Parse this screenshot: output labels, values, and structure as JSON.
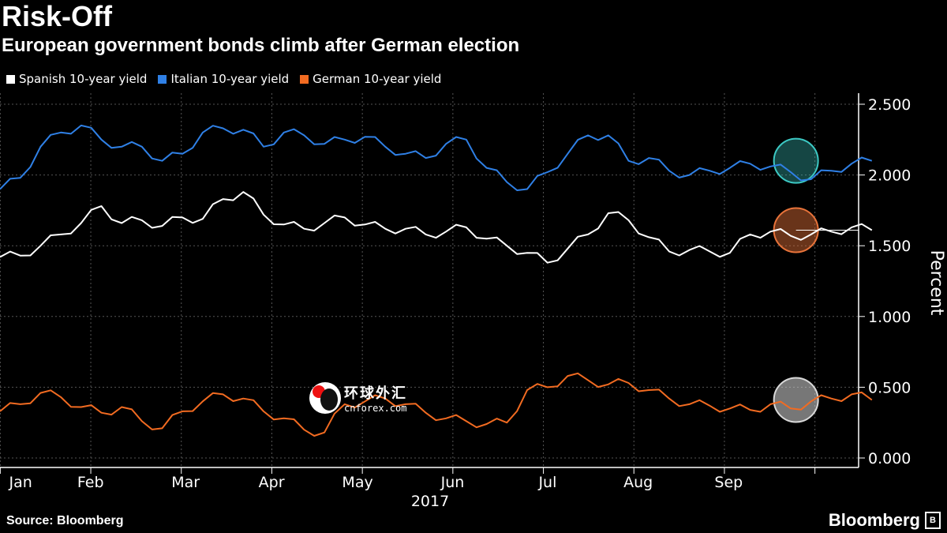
{
  "header": {
    "title": "Risk-Off",
    "subtitle": "European government bonds climb after German election"
  },
  "footer": {
    "source": "Source: Bloomberg",
    "brand": "Bloomberg",
    "brand_mark": "B"
  },
  "watermark": {
    "cn": "环球外汇",
    "en": "cnforex.com"
  },
  "colors": {
    "background": "#000000",
    "spanish": "#ffffff",
    "italian": "#2f80e6",
    "german": "#f26b21",
    "grid": "#555555",
    "highlight_italian": "#3cc9c4",
    "highlight_spanish": "#e8733a",
    "highlight_german": "#d9d9d9"
  },
  "chart_data": {
    "type": "line",
    "title": "Risk-Off",
    "subtitle": "European government bonds climb after German election",
    "xlabel": "2017",
    "ylabel": "Percent",
    "ylim": [
      0,
      2.6
    ],
    "yticks": [
      0.0,
      0.5,
      1.0,
      1.5,
      2.0,
      2.5
    ],
    "ytick_labels": [
      "0.000",
      "0.500",
      "1.000",
      "1.500",
      "2.000",
      "2.500"
    ],
    "x_range": [
      0,
      9.6
    ],
    "month_ticks": [
      0.5,
      1.5,
      2.5,
      3.5,
      4.5,
      5.5,
      6.5,
      7.5,
      8.5,
      9.5
    ],
    "month_labels": [
      "Jan",
      "Feb",
      "Mar",
      "Apr",
      "May",
      "Jun",
      "Jul",
      "Aug",
      "Sep"
    ],
    "month_label_positions": [
      0.1,
      1.0,
      2.05,
      3.0,
      3.95,
      5.0,
      6.05,
      7.05,
      8.05
    ],
    "grid": true,
    "legend_position": "top-left",
    "series": [
      {
        "name": "Spanish 10-year yield",
        "color": "#ffffff",
        "x": [
          0,
          0.2,
          0.4,
          0.6,
          0.8,
          1.0,
          1.2,
          1.4,
          1.6,
          1.8,
          2.0,
          2.2,
          2.4,
          2.6,
          2.8,
          3.0,
          3.2,
          3.4,
          3.6,
          3.8,
          4.0,
          4.2,
          4.4,
          4.6,
          4.8,
          5.0,
          5.2,
          5.4,
          5.6,
          5.8,
          6.0,
          6.2,
          6.4,
          6.6,
          6.8,
          7.0,
          7.2,
          7.4,
          7.6,
          7.8,
          8.0,
          8.2,
          8.4,
          8.6
        ],
        "y": [
          1.42,
          1.43,
          1.5,
          1.58,
          1.66,
          1.78,
          1.66,
          1.68,
          1.64,
          1.7,
          1.69,
          1.83,
          1.88,
          1.72,
          1.65,
          1.62,
          1.66,
          1.7,
          1.65,
          1.62,
          1.62,
          1.58,
          1.6,
          1.63,
          1.55,
          1.5,
          1.45,
          1.38,
          1.48,
          1.58,
          1.73,
          1.68,
          1.56,
          1.46,
          1.47,
          1.46,
          1.45,
          1.58,
          1.6,
          1.57,
          1.58,
          1.6,
          1.63,
          1.61
        ]
      },
      {
        "name": "Italian 10-year yield",
        "color": "#2f80e6",
        "x": [
          0,
          0.2,
          0.4,
          0.6,
          0.8,
          1.0,
          1.2,
          1.4,
          1.6,
          1.8,
          2.0,
          2.2,
          2.4,
          2.6,
          2.8,
          3.0,
          3.2,
          3.4,
          3.6,
          3.8,
          4.0,
          4.2,
          4.4,
          4.6,
          4.8,
          5.0,
          5.2,
          5.4,
          5.6,
          5.8,
          6.0,
          6.2,
          6.4,
          6.6,
          6.8,
          7.0,
          7.2,
          7.4,
          7.6,
          7.8,
          8.0,
          8.2,
          8.4,
          8.6
        ],
        "y": [
          1.9,
          1.98,
          2.2,
          2.3,
          2.35,
          2.25,
          2.2,
          2.2,
          2.1,
          2.15,
          2.3,
          2.33,
          2.32,
          2.2,
          2.3,
          2.28,
          2.22,
          2.25,
          2.27,
          2.2,
          2.15,
          2.12,
          2.22,
          2.25,
          2.05,
          1.95,
          1.9,
          2.02,
          2.15,
          2.28,
          2.28,
          2.1,
          2.12,
          2.03,
          2.0,
          2.03,
          2.05,
          2.08,
          2.06,
          2.02,
          1.97,
          2.03,
          2.08,
          2.1
        ]
      },
      {
        "name": "German 10-year yield",
        "color": "#f26b21",
        "x": [
          0,
          0.2,
          0.4,
          0.6,
          0.8,
          1.0,
          1.2,
          1.4,
          1.6,
          1.8,
          2.0,
          2.2,
          2.4,
          2.6,
          2.8,
          3.0,
          3.2,
          3.4,
          3.6,
          3.8,
          4.0,
          4.2,
          4.4,
          4.6,
          4.8,
          5.0,
          5.2,
          5.4,
          5.6,
          5.8,
          6.0,
          6.2,
          6.4,
          6.6,
          6.8,
          7.0,
          7.2,
          7.4,
          7.6,
          7.8,
          8.0,
          8.2,
          8.4,
          8.6
        ],
        "y": [
          0.33,
          0.38,
          0.46,
          0.43,
          0.36,
          0.32,
          0.36,
          0.26,
          0.21,
          0.33,
          0.4,
          0.45,
          0.42,
          0.33,
          0.28,
          0.2,
          0.18,
          0.38,
          0.4,
          0.42,
          0.38,
          0.32,
          0.28,
          0.26,
          0.24,
          0.25,
          0.48,
          0.5,
          0.58,
          0.55,
          0.52,
          0.53,
          0.48,
          0.42,
          0.38,
          0.37,
          0.35,
          0.34,
          0.38,
          0.35,
          0.4,
          0.42,
          0.45,
          0.41
        ]
      }
    ],
    "highlights": [
      {
        "series": "Italian 10-year yield",
        "x": 8.48,
        "y": 2.1
      },
      {
        "series": "Spanish 10-year yield",
        "x": 8.48,
        "y": 1.61
      },
      {
        "series": "German 10-year yield",
        "x": 8.48,
        "y": 0.41
      }
    ]
  }
}
